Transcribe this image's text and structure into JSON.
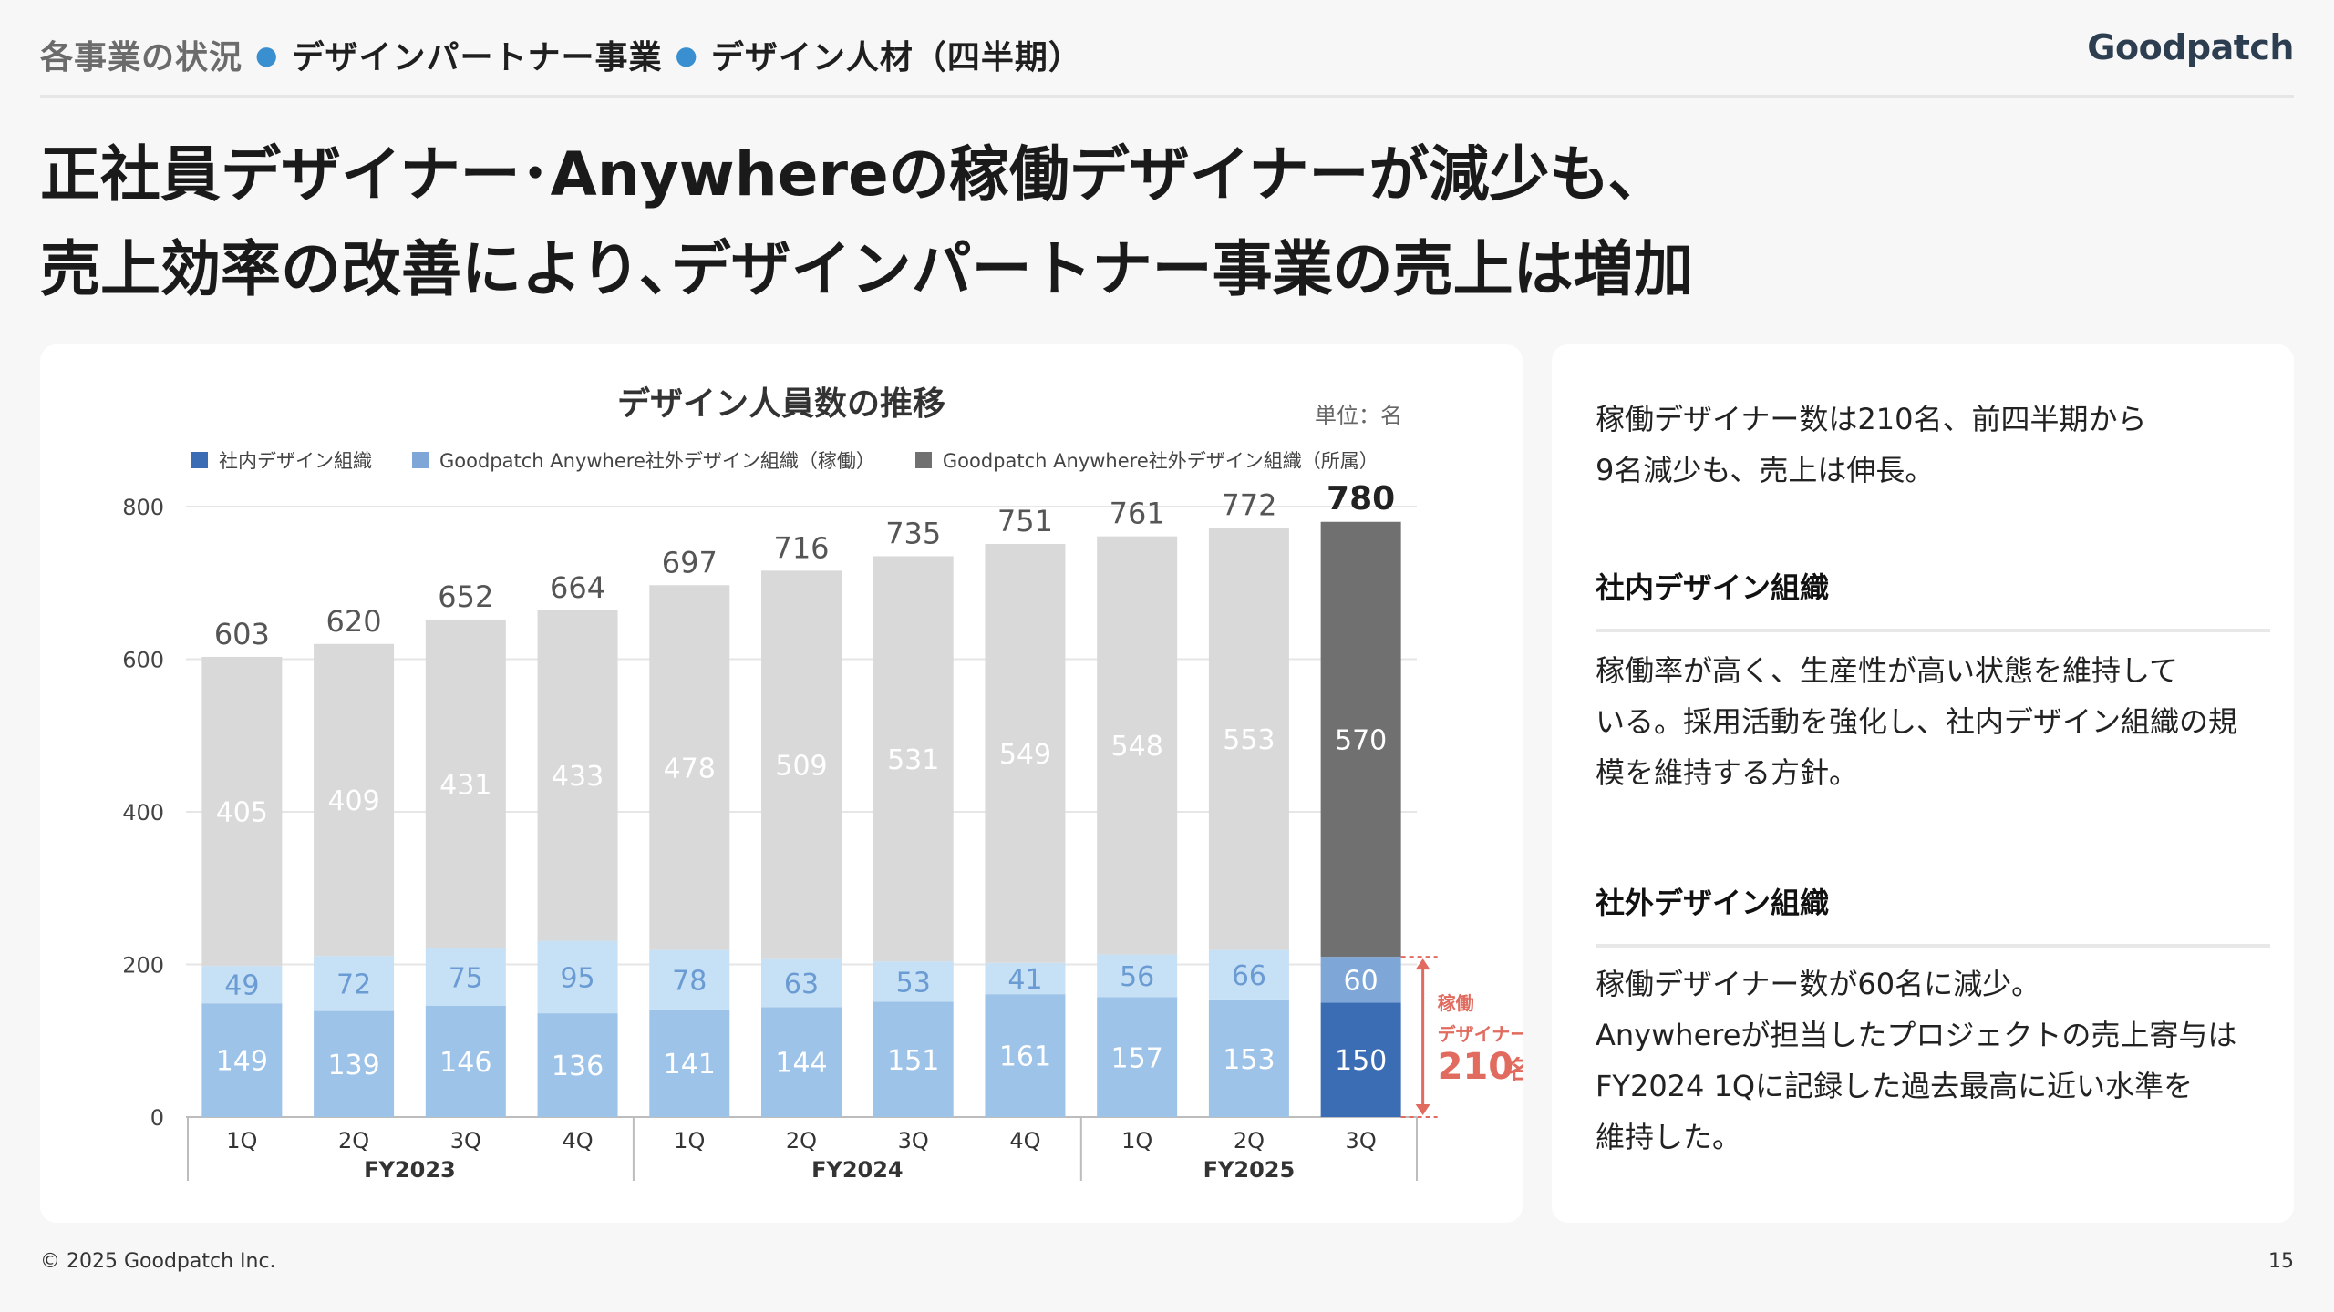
{
  "breadcrumb": {
    "item1": "各事業の状況",
    "item2": "デザインパートナー事業",
    "item3": "デザイン人材（四半期）"
  },
  "logo": "Goodpatch",
  "headline": {
    "line1": "正社員デザイナー･Anywhereの稼働デザイナーが減少も、",
    "line2": "売上効率の改善により､デザインパートナー事業の売上は増加"
  },
  "chart_panel": {
    "title": "デザイン人員数の推移",
    "unit": "単位：名"
  },
  "annotation": {
    "line1": "稼働",
    "line2": "デザイナー数",
    "value": "210",
    "suffix": "名"
  },
  "colors": {
    "internal": "#9ec3e8",
    "external_active": "#c6e0f5",
    "external_enrolled": "#d9d9d9",
    "highlight_internal": "#3b6db5",
    "highlight_active": "#7ea7d8",
    "highlight_enrolled": "#707070",
    "annotation": "#e06b5e"
  },
  "chart_data": {
    "type": "bar",
    "stacked": true,
    "ylim": [
      0,
      800
    ],
    "yticks": [
      0,
      200,
      400,
      600,
      800
    ],
    "grid": true,
    "legend_position": "top",
    "categories": [
      "1Q",
      "2Q",
      "3Q",
      "4Q",
      "1Q",
      "2Q",
      "3Q",
      "4Q",
      "1Q",
      "2Q",
      "3Q"
    ],
    "groups": [
      {
        "label": "FY2023",
        "count": 4
      },
      {
        "label": "FY2024",
        "count": 4
      },
      {
        "label": "FY2025",
        "count": 3
      }
    ],
    "series": [
      {
        "name": "社内デザイン組織",
        "values": [
          149,
          139,
          146,
          136,
          141,
          144,
          151,
          161,
          157,
          153,
          150
        ]
      },
      {
        "name": "Goodpatch Anywhere社外デザイン組織（稼働）",
        "values": [
          49,
          72,
          75,
          95,
          78,
          63,
          53,
          41,
          56,
          66,
          60
        ]
      },
      {
        "name": "Goodpatch Anywhere社外デザイン組織（所属）",
        "values": [
          405,
          409,
          431,
          433,
          478,
          509,
          531,
          549,
          548,
          553,
          570
        ]
      }
    ],
    "totals": [
      603,
      620,
      652,
      664,
      697,
      716,
      735,
      751,
      761,
      772,
      780
    ],
    "highlight_index": 10
  },
  "right_panel": {
    "intro": [
      "稼働デザイナー数は210名、前四半期から",
      "9名減少も、売上は伸長。"
    ],
    "section1_heading": "社内デザイン組織",
    "section1_body": [
      "稼働率が高く、生産性が高い状態を維持して",
      "いる。採用活動を強化し、社内デザイン組織の規",
      "模を維持する方針。"
    ],
    "section2_heading": "社外デザイン組織",
    "section2_body": [
      "稼働デザイナー数が60名に減少。",
      "Anywhereが担当したプロジェクトの売上寄与は",
      "FY2024 1Qに記録した過去最高に近い水準を",
      "維持した。"
    ]
  },
  "footer": {
    "copyright": "© 2025 Goodpatch Inc.",
    "page": "15"
  }
}
